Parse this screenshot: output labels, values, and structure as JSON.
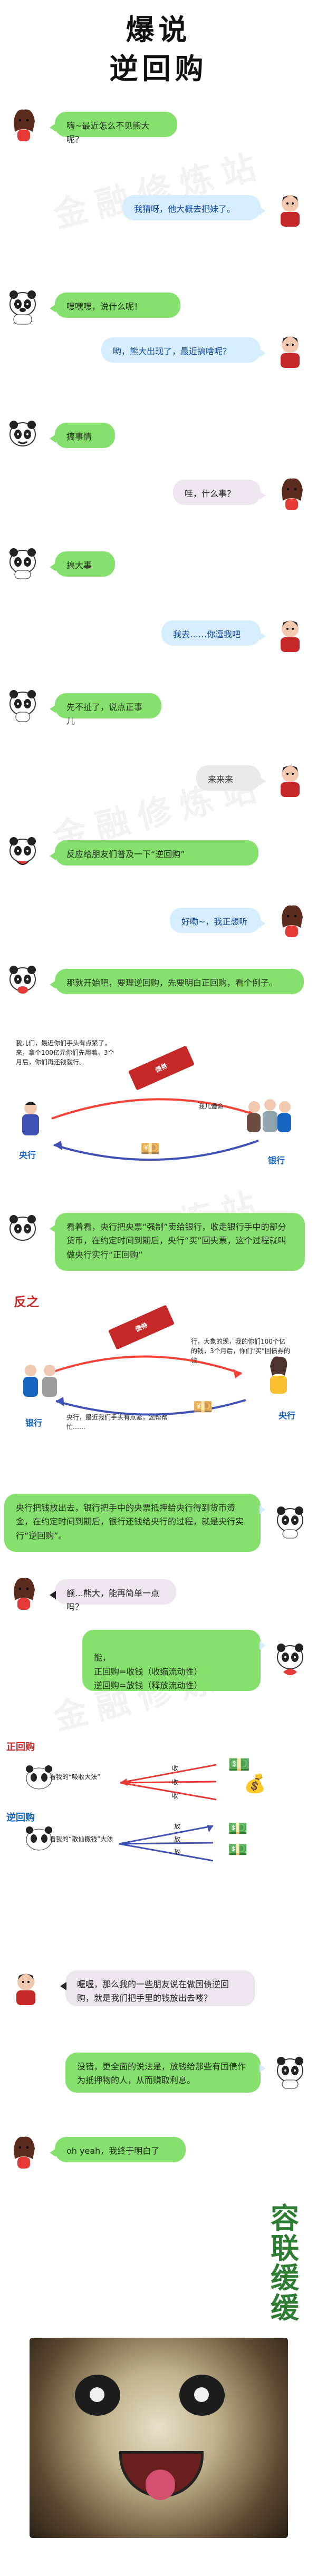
{
  "title": {
    "line1": "爆说",
    "line2": "逆回购"
  },
  "watermark": "金融修炼站",
  "messages": [
    {
      "id": "m1",
      "speaker": "girl",
      "side": "left",
      "text": "嗨~最近怎么不见熊大呢？"
    },
    {
      "id": "m2",
      "speaker": "man",
      "side": "right",
      "text": "我猜呀，他大概去把妹了。"
    },
    {
      "id": "m3",
      "speaker": "panda",
      "side": "left",
      "text": "嘿嘿嘿，说什么呢！"
    },
    {
      "id": "m4",
      "speaker": "man",
      "side": "right",
      "text": "哟，熊大出现了，最近搞啥呢？"
    },
    {
      "id": "m5",
      "speaker": "panda",
      "side": "left",
      "text": "搞事情"
    },
    {
      "id": "m6",
      "speaker": "girl",
      "side": "right",
      "text": "哇，什么事？"
    },
    {
      "id": "m7",
      "speaker": "panda",
      "side": "left",
      "text": "搞大事"
    },
    {
      "id": "m8",
      "speaker": "man",
      "side": "right",
      "text": "我去……你逗我吧"
    },
    {
      "id": "m9",
      "speaker": "panda",
      "side": "left",
      "text": "先不扯了，说点正事儿"
    },
    {
      "id": "m10",
      "speaker": "man",
      "side": "right",
      "text": "来来来"
    },
    {
      "id": "m11",
      "speaker": "panda",
      "side": "left",
      "text": "反应给朋友们普及一下“逆回购”"
    },
    {
      "id": "m12",
      "speaker": "girl",
      "side": "right",
      "text": "好嘞~，我正想听"
    },
    {
      "id": "m13",
      "speaker": "panda",
      "side": "left",
      "text": "那就开始吧，要理逆回购，先要明白正回购，看个例子。"
    }
  ],
  "diagram1": {
    "left_caption": "我儿们，最近你们手头有点紧了，来，拿个100亿元你们先用着。3个月后，你们再还钱就行。",
    "central_label": "央行",
    "bank_label": "银行",
    "side_label": "我儿遵命",
    "ticket_text": "债券",
    "money_icon": "money-fan"
  },
  "explain1": {
    "text": "看着看，央行把央票“强制”卖给银行，收走银行手中的部分货币，在约定时间到期后，央行“买”回央票，这个过程就叫做央行实行“正回购”"
  },
  "diagram2": {
    "heading": "反之",
    "right_caption": "行，大象的现，我的你们100个亿的钱，3个月后，你们“买”回债券的钱。",
    "left_caption": "央行，最近我们手头有点紧，您帮帮忙……",
    "central_label": "央行",
    "bank_label": "银行",
    "ticket_text": "债券",
    "money_icon": "money-fan"
  },
  "explain2": {
    "text": "央行把钱放出去，银行把手中的央票抵押给央行得到货币资金，在约定时间到期后，银行还钱给央行的过程，就是央行实行“逆回购”。"
  },
  "messages2": [
    {
      "id": "m14",
      "speaker": "girl",
      "side": "left",
      "text": "额…熊大，能再简单一点吗？"
    },
    {
      "id": "m15",
      "speaker": "panda",
      "side": "right",
      "text": "能，\n正回购=收钱（收缩流动性）\n逆回购=放钱（释放流动性）"
    },
    {
      "id": "m16",
      "speaker": "man",
      "side": "right",
      "text": "喔喔，那么我的一些朋友说在做国债逆回购，就是我们把手里的钱放出去喽？"
    },
    {
      "id": "m17",
      "speaker": "panda",
      "side": "left",
      "text": "没错，更全面的说法是，放钱给那些有国债作为抵押物的人，从而赚取利息。"
    },
    {
      "id": "m18",
      "speaker": "girl",
      "side": "left",
      "text": "oh yeah，我终于明白了"
    }
  ],
  "simple": {
    "positive_heading": "正回购",
    "negative_heading": "逆回购",
    "positive_caption": "看我的“吸收大法”",
    "negative_caption": "看我的“散仙撒钱”大法",
    "positive_labels": [
      "收",
      "收",
      "收"
    ],
    "negative_labels": [
      "放",
      "放",
      "放"
    ],
    "money_icon": "money-bag"
  },
  "brand": {
    "stamp": "容联缓缓",
    "image_icon": "panda-face"
  },
  "colors": {
    "green": "#86e06d",
    "blue": "#d6ecff",
    "pink": "#eee6ee",
    "grey": "#e9e9e9",
    "red": "#c62828",
    "blue_dark": "#1565c0",
    "gold": "#8d6e63"
  }
}
